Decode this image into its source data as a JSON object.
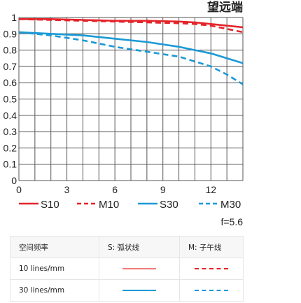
{
  "colors": {
    "red": "#e4242a",
    "blue": "#1a9ad6",
    "grid": "#555555"
  },
  "chart_data": {
    "type": "line",
    "title": "望远端",
    "xlabel": "",
    "ylabel": "",
    "xlim": [
      0,
      14
    ],
    "ylim": [
      0,
      1
    ],
    "x_ticks": [
      "0",
      "3",
      "6",
      "9",
      "12"
    ],
    "y_ticks": [
      "0",
      "0.1",
      "0.2",
      "0.3",
      "0.4",
      "0.5",
      "0.6",
      "0.7",
      "0.8",
      "0.9",
      "1"
    ],
    "grid": true,
    "legend_position": "bottom",
    "annotation": "f=5.6",
    "series": [
      {
        "name": "S10",
        "color": "red",
        "style": "solid",
        "x": [
          0,
          2,
          4,
          6,
          8,
          10,
          11,
          12,
          13,
          14
        ],
        "y": [
          0.99,
          0.99,
          0.985,
          0.98,
          0.98,
          0.975,
          0.97,
          0.96,
          0.95,
          0.94
        ]
      },
      {
        "name": "M10",
        "color": "red",
        "style": "dashed",
        "x": [
          0,
          2,
          4,
          6,
          8,
          10,
          11,
          12,
          13,
          14
        ],
        "y": [
          0.99,
          0.985,
          0.98,
          0.975,
          0.97,
          0.965,
          0.96,
          0.95,
          0.93,
          0.91
        ]
      },
      {
        "name": "S30",
        "color": "blue",
        "style": "solid",
        "x": [
          0,
          2,
          4,
          6,
          8,
          10,
          11,
          12,
          13,
          14
        ],
        "y": [
          0.91,
          0.9,
          0.89,
          0.87,
          0.85,
          0.82,
          0.8,
          0.78,
          0.75,
          0.72
        ]
      },
      {
        "name": "M30",
        "color": "blue",
        "style": "dashed",
        "x": [
          0,
          2,
          4,
          6,
          8,
          10,
          11,
          12,
          13,
          14
        ],
        "y": [
          0.91,
          0.89,
          0.86,
          0.82,
          0.79,
          0.76,
          0.73,
          0.7,
          0.65,
          0.59
        ]
      }
    ]
  },
  "table": {
    "headers": [
      "空间频率",
      "S: 弧状线",
      "M: 子午线"
    ],
    "rows": [
      {
        "label": "10 lines/mm",
        "color": "red"
      },
      {
        "label": "30 lines/mm",
        "color": "blue"
      }
    ]
  }
}
